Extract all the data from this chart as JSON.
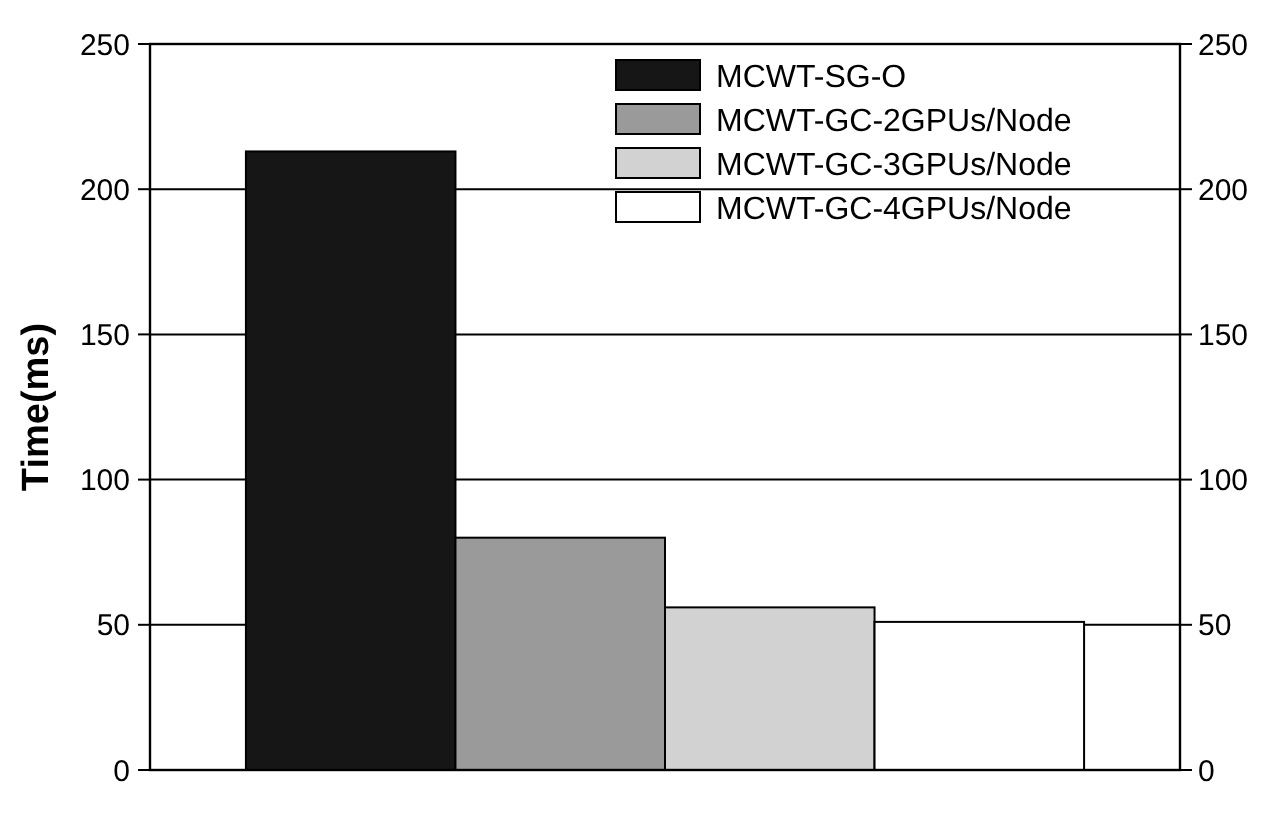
{
  "chart_data": {
    "type": "bar",
    "ylabel": "Time(ms)",
    "categories": [
      null
    ],
    "series": [
      {
        "name": "MCWT-SG-O",
        "color": "#161616",
        "values": [
          213
        ]
      },
      {
        "name": "MCWT-GC-2GPUs/Node",
        "color": "#9a9a9a",
        "values": [
          80
        ]
      },
      {
        "name": "MCWT-GC-3GPUs/Node",
        "color": "#d2d2d2",
        "values": [
          56
        ]
      },
      {
        "name": "MCWT-GC-4GPUs/Node",
        "color": "#ffffff",
        "values": [
          51
        ]
      }
    ],
    "ylim": [
      0,
      250
    ],
    "yticks": [
      0,
      50,
      100,
      150,
      200,
      250
    ],
    "y2lim": [
      0,
      250
    ],
    "y2ticks": [
      0,
      50,
      100,
      150,
      200,
      250
    ],
    "grid": "y",
    "legend": "top right"
  }
}
